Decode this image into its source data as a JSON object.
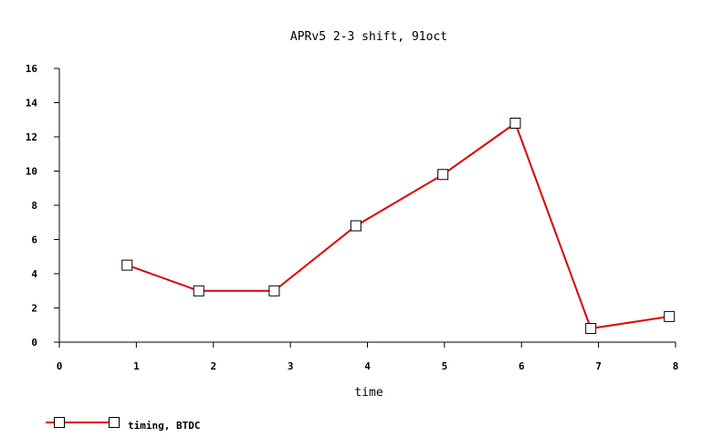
{
  "chart_data": {
    "type": "line",
    "title": "APRv5 2-3 shift, 91oct",
    "xlabel": "time",
    "ylabel": "",
    "xlim": [
      0,
      8
    ],
    "ylim": [
      0,
      16
    ],
    "xticks": [
      "0",
      "1",
      "2",
      "3",
      "4",
      "5",
      "6",
      "7",
      "8"
    ],
    "yticks": [
      "0",
      "2",
      "4",
      "6",
      "8",
      "10",
      "12",
      "14",
      "16"
    ],
    "grid": false,
    "legend_position": "bottom-left",
    "series": [
      {
        "name": "timing, BTDC",
        "color": "#dd0000",
        "marker": "square",
        "x": [
          0.88,
          1.81,
          2.79,
          3.85,
          4.98,
          5.92,
          6.9,
          7.92
        ],
        "y": [
          4.5,
          3.0,
          3.0,
          6.8,
          9.8,
          12.8,
          0.8,
          1.5
        ]
      }
    ]
  }
}
